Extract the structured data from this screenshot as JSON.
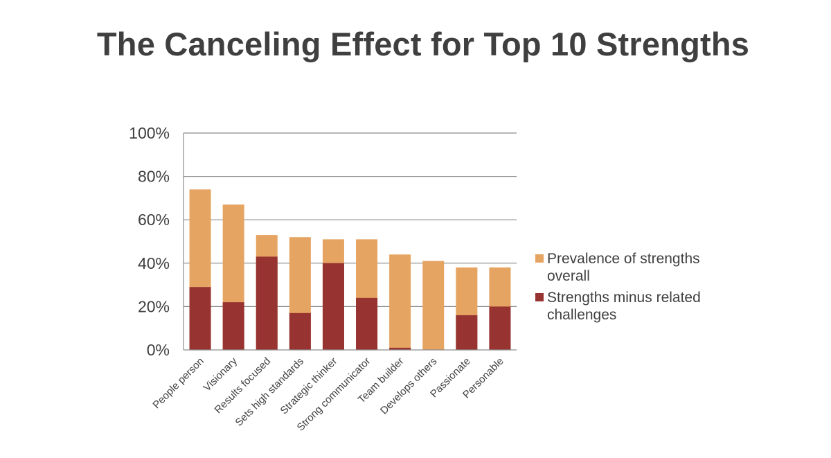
{
  "chart_data": {
    "type": "bar",
    "title": "The Canceling Effect for Top 10 Strengths",
    "categories": [
      "People person",
      "Visionary",
      "Results focused",
      "Sets high standards",
      "Strategic thinker",
      "Strong communicator",
      "Team builder",
      "Develops others",
      "Passionate",
      "Personable"
    ],
    "series": [
      {
        "name": "Prevalence of strengths overall",
        "legend_lines": [
          "Prevalence of strengths",
          "overall"
        ],
        "color": "#E6A462",
        "values": [
          74,
          67,
          53,
          52,
          51,
          51,
          44,
          41,
          38,
          38
        ]
      },
      {
        "name": "Strengths minus related challenges",
        "legend_lines": [
          "Strengths minus related",
          "challenges"
        ],
        "color": "#973331",
        "values": [
          29,
          22,
          43,
          17,
          40,
          24,
          1,
          0,
          16,
          20
        ]
      }
    ],
    "yticks": [
      "0%",
      "20%",
      "40%",
      "60%",
      "80%",
      "100%"
    ],
    "ylim": [
      0,
      100
    ],
    "grid": true,
    "legend": "right",
    "xlabel": "",
    "ylabel": ""
  }
}
